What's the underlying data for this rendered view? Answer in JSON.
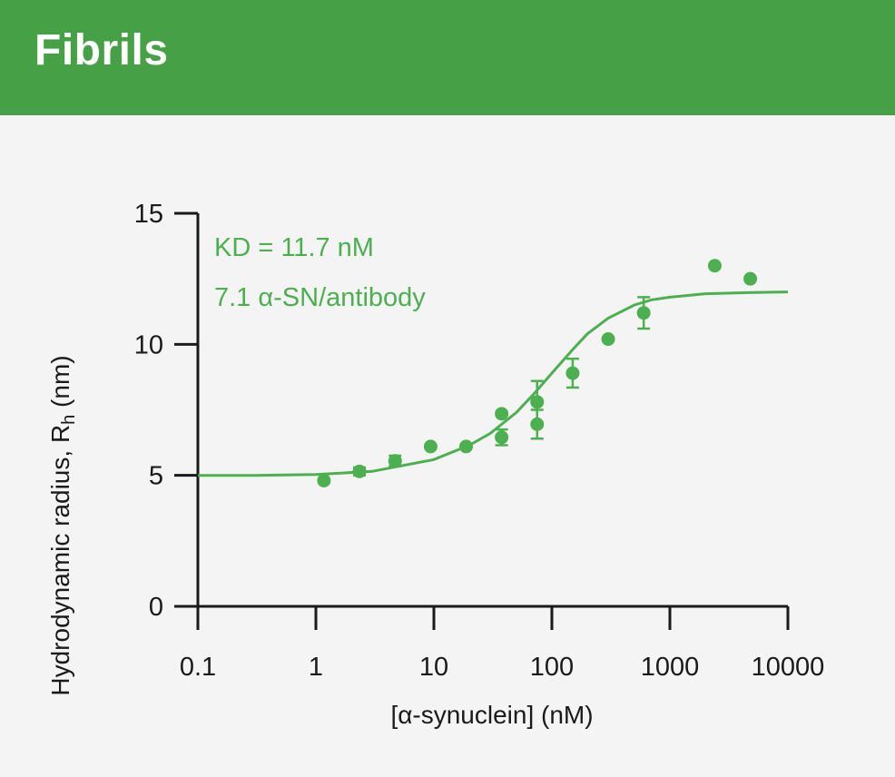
{
  "header": {
    "title": "Fibrils"
  },
  "colors": {
    "header_bg": "#46a046",
    "series": "#4caf50",
    "axis": "#1a1a1a"
  },
  "chart_data": {
    "type": "scatter",
    "title": "Fibrils",
    "xlabel": "[α-synuclein] (nM)",
    "ylabel": "Hydrodynamic radius,  R",
    "ylabel_subscript": "h",
    "ylabel_unit": " (nm)",
    "xscale": "log",
    "xlim": [
      0.1,
      10000
    ],
    "ylim": [
      0,
      15
    ],
    "xticks": [
      "0.1",
      "1",
      "10",
      "100",
      "1000",
      "10000"
    ],
    "xtick_values": [
      0.1,
      1,
      10,
      100,
      1000,
      10000
    ],
    "yticks": [
      "0",
      "5",
      "10",
      "15"
    ],
    "ytick_values": [
      0,
      5,
      10,
      15
    ],
    "annotations": [
      "KD = 11.7 nM",
      "7.1 α-SN/antibody"
    ],
    "grid": false,
    "series": [
      {
        "type": "scatter",
        "points": [
          {
            "x": 1.17,
            "y": 4.8,
            "err": 0
          },
          {
            "x": 2.34,
            "y": 5.15,
            "err": 0.15
          },
          {
            "x": 4.69,
            "y": 5.55,
            "err": 0.2
          },
          {
            "x": 9.38,
            "y": 6.1,
            "err": 0
          },
          {
            "x": 18.75,
            "y": 6.1,
            "err": 0
          },
          {
            "x": 37.5,
            "y": 7.35,
            "err": 0
          },
          {
            "x": 37.5,
            "y": 6.45,
            "err": 0.3
          },
          {
            "x": 75,
            "y": 7.8,
            "err": 0.8
          },
          {
            "x": 75,
            "y": 6.95,
            "err": 0.55
          },
          {
            "x": 150,
            "y": 8.9,
            "err": 0.55
          },
          {
            "x": 300,
            "y": 10.2,
            "err": 0
          },
          {
            "x": 600,
            "y": 11.2,
            "err": 0.6
          },
          {
            "x": 2400,
            "y": 13.0,
            "err": 0
          },
          {
            "x": 4800,
            "y": 12.5,
            "err": 0
          }
        ]
      },
      {
        "type": "line",
        "fit": {
          "x": [
            0.1,
            0.3,
            1,
            3,
            10,
            20,
            30,
            50,
            70,
            100,
            150,
            200,
            300,
            500,
            700,
            1000,
            2000,
            5000,
            10000
          ],
          "y": [
            5.0,
            5.0,
            5.03,
            5.15,
            5.6,
            6.15,
            6.6,
            7.4,
            8.1,
            8.9,
            9.8,
            10.4,
            11.0,
            11.5,
            11.7,
            11.8,
            11.93,
            11.98,
            12.0
          ]
        }
      }
    ]
  }
}
